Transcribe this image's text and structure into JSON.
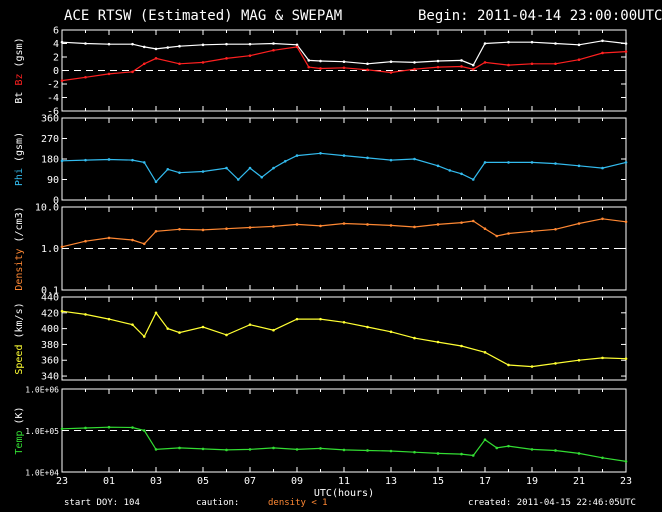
{
  "header": {
    "title": "ACE RTSW (Estimated) MAG & SWEPAM",
    "begin": "Begin: 2011-04-14 23:00:00UTC"
  },
  "footer": {
    "start_doy": "start DOY: 104",
    "caution": "caution:",
    "density_note": "density < 1",
    "created": "created: 2011-04-15 22:46:05UTC"
  },
  "colors": {
    "bt": "#ffffff",
    "bz": "#ff2020",
    "phi": "#33bbee",
    "density": "#ff8833",
    "speed": "#ffff33",
    "temp": "#33dd33",
    "dashed": "#ffffff"
  },
  "chart_data": {
    "type": "line",
    "x_unit": "UTC hours since 2011-04-14 23:00",
    "xlabel": "UTC(hours)",
    "x_ticks": [
      "23",
      "01",
      "03",
      "05",
      "07",
      "09",
      "11",
      "13",
      "15",
      "17",
      "19",
      "21",
      "23"
    ],
    "panels": [
      {
        "id": "mag",
        "ylabel_parts": [
          {
            "text": "Bt",
            "color": "#ffffff"
          },
          {
            "text": " Bz",
            "color": "#ff2020"
          },
          {
            "text": " (gsm)",
            "color": "#ffffff"
          }
        ],
        "scale": "linear",
        "ylim": [
          -6,
          6
        ],
        "ticks": [
          {
            "v": 6,
            "l": "6"
          },
          {
            "v": 4,
            "l": "4"
          },
          {
            "v": 2,
            "l": "2"
          },
          {
            "v": 0,
            "l": "0"
          },
          {
            "v": -2,
            "l": "-2"
          },
          {
            "v": -4,
            "l": "-4"
          },
          {
            "v": -6,
            "l": "-6"
          }
        ],
        "dashed": [
          0
        ],
        "series": [
          {
            "name": "Bt",
            "color": "#ffffff",
            "x": [
              0,
              1,
              2,
              3,
              3.5,
              4,
              4.5,
              5,
              6,
              7,
              8,
              9,
              10,
              10.5,
              11,
              12,
              13,
              14,
              15,
              16,
              17,
              17.5,
              18,
              19,
              20,
              21,
              22,
              23,
              24
            ],
            "y": [
              4.2,
              4.0,
              3.9,
              3.9,
              3.5,
              3.2,
              3.4,
              3.6,
              3.8,
              3.9,
              3.9,
              4.0,
              3.8,
              1.5,
              1.4,
              1.3,
              1.0,
              1.3,
              1.2,
              1.4,
              1.5,
              0.8,
              4.0,
              4.2,
              4.2,
              4.0,
              3.8,
              4.4,
              4.0
            ]
          },
          {
            "name": "Bz",
            "color": "#ff2020",
            "x": [
              0,
              1,
              2,
              3,
              3.5,
              4,
              5,
              6,
              7,
              8,
              9,
              10,
              10.5,
              11,
              12,
              13,
              14,
              15,
              16,
              17,
              17.5,
              18,
              19,
              20,
              21,
              22,
              23,
              24
            ],
            "y": [
              -1.5,
              -1.0,
              -0.5,
              -0.2,
              1.0,
              1.8,
              1.0,
              1.2,
              1.8,
              2.2,
              3.0,
              3.5,
              0.5,
              0.3,
              0.4,
              0.1,
              -0.3,
              0.2,
              0.5,
              0.6,
              0.2,
              1.2,
              0.8,
              1.0,
              1.0,
              1.6,
              2.6,
              2.8
            ]
          }
        ]
      },
      {
        "id": "phi",
        "ylabel_parts": [
          {
            "text": "Phi",
            "color": "#33bbee"
          },
          {
            "text": " (gsm)",
            "color": "#ffffff"
          }
        ],
        "scale": "linear",
        "ylim": [
          0,
          360
        ],
        "ticks": [
          {
            "v": 360,
            "l": "360"
          },
          {
            "v": 270,
            "l": "270"
          },
          {
            "v": 180,
            "l": "180"
          },
          {
            "v": 90,
            "l": "90"
          },
          {
            "v": 0,
            "l": "0"
          }
        ],
        "dashed": [],
        "series": [
          {
            "name": "Phi",
            "color": "#33bbee",
            "x": [
              0,
              1,
              2,
              3,
              3.5,
              4,
              4.5,
              5,
              6,
              7,
              7.5,
              8,
              8.5,
              9,
              9.5,
              10,
              11,
              12,
              13,
              14,
              15,
              16,
              16.5,
              17,
              17.5,
              18,
              19,
              20,
              21,
              22,
              23,
              24
            ],
            "y": [
              172,
              175,
              178,
              175,
              165,
              80,
              135,
              120,
              125,
              140,
              90,
              140,
              100,
              140,
              170,
              195,
              205,
              195,
              185,
              175,
              180,
              150,
              130,
              115,
              90,
              165,
              165,
              165,
              160,
              150,
              140,
              165
            ]
          }
        ]
      },
      {
        "id": "density",
        "ylabel_parts": [
          {
            "text": "Density",
            "color": "#ff8833"
          },
          {
            "text": " (/cm3)",
            "color": "#ffffff"
          }
        ],
        "scale": "log",
        "ylim": [
          0.1,
          10
        ],
        "ticks": [
          {
            "v": 10,
            "l": "10.0"
          },
          {
            "v": 1,
            "l": "1.0"
          },
          {
            "v": 0.1,
            "l": "0.1"
          }
        ],
        "dashed": [
          1
        ],
        "series": [
          {
            "name": "Density",
            "color": "#ff8833",
            "x": [
              0,
              1,
              2,
              3,
              3.5,
              4,
              5,
              6,
              7,
              8,
              9,
              10,
              11,
              12,
              13,
              14,
              15,
              16,
              17,
              17.5,
              18,
              18.5,
              19,
              20,
              21,
              22,
              23,
              24
            ],
            "y": [
              1.1,
              1.5,
              1.8,
              1.6,
              1.3,
              2.6,
              2.9,
              2.8,
              3.0,
              3.2,
              3.4,
              3.8,
              3.5,
              4.0,
              3.8,
              3.6,
              3.3,
              3.8,
              4.2,
              4.6,
              3.0,
              2.0,
              2.3,
              2.6,
              2.9,
              4.0,
              5.2,
              4.4
            ]
          }
        ]
      },
      {
        "id": "speed",
        "ylabel_parts": [
          {
            "text": "Speed",
            "color": "#ffff33"
          },
          {
            "text": " (km/s)",
            "color": "#ffffff"
          }
        ],
        "scale": "linear",
        "ylim": [
          335,
          440
        ],
        "ticks": [
          {
            "v": 440,
            "l": "440"
          },
          {
            "v": 420,
            "l": "420"
          },
          {
            "v": 400,
            "l": "400"
          },
          {
            "v": 380,
            "l": "380"
          },
          {
            "v": 360,
            "l": "360"
          },
          {
            "v": 340,
            "l": "340"
          }
        ],
        "dashed": [],
        "series": [
          {
            "name": "Speed",
            "color": "#ffff33",
            "x": [
              0,
              1,
              2,
              3,
              3.5,
              4,
              4.5,
              5,
              6,
              7,
              8,
              9,
              10,
              11,
              12,
              13,
              14,
              15,
              16,
              17,
              18,
              19,
              20,
              21,
              22,
              23,
              24
            ],
            "y": [
              422,
              418,
              412,
              405,
              390,
              420,
              400,
              395,
              402,
              392,
              405,
              398,
              412,
              412,
              408,
              402,
              396,
              388,
              383,
              378,
              370,
              354,
              352,
              356,
              360,
              363,
              362
            ]
          }
        ]
      },
      {
        "id": "temp",
        "ylabel_parts": [
          {
            "text": "Temp",
            "color": "#33dd33"
          },
          {
            "text": " (K)",
            "color": "#ffffff"
          }
        ],
        "scale": "log",
        "ylim": [
          10000,
          1000000
        ],
        "ticks": [
          {
            "v": 1000000,
            "l": "1.0E+06"
          },
          {
            "v": 100000,
            "l": "1.0E+05"
          },
          {
            "v": 10000,
            "l": "1.0E+04"
          }
        ],
        "dashed": [
          100000
        ],
        "series": [
          {
            "name": "Temp",
            "color": "#33dd33",
            "x": [
              0,
              1,
              2,
              3,
              3.5,
              4,
              5,
              6,
              7,
              8,
              9,
              10,
              11,
              12,
              13,
              14,
              15,
              16,
              17,
              17.5,
              18,
              18.5,
              19,
              20,
              21,
              22,
              23,
              24
            ],
            "y": [
              110000,
              115000,
              120000,
              118000,
              100000,
              35000,
              38000,
              36000,
              34000,
              35000,
              38000,
              35000,
              37000,
              34000,
              33000,
              32000,
              30000,
              28000,
              27000,
              25000,
              60000,
              38000,
              42000,
              35000,
              33000,
              28000,
              22000,
              18000
            ]
          }
        ]
      }
    ]
  }
}
